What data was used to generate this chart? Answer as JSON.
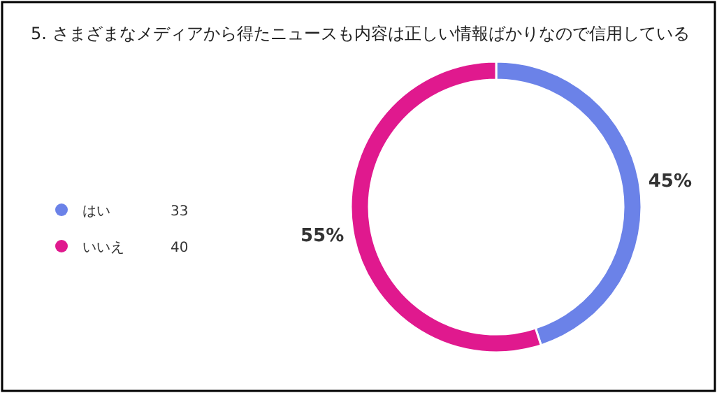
{
  "chart_data": {
    "type": "donut",
    "title": "5. さまざまなメディアから得たニュースも内容は正しい情報ばかりなので信用している",
    "categories": [
      "はい",
      "いいえ"
    ],
    "values": [
      45,
      55
    ],
    "annotations": [
      "33",
      "40"
    ],
    "colors": [
      "#6b82e8",
      "#e0198e"
    ],
    "value_labels": [
      "45%",
      "55%"
    ],
    "legend": "left"
  }
}
